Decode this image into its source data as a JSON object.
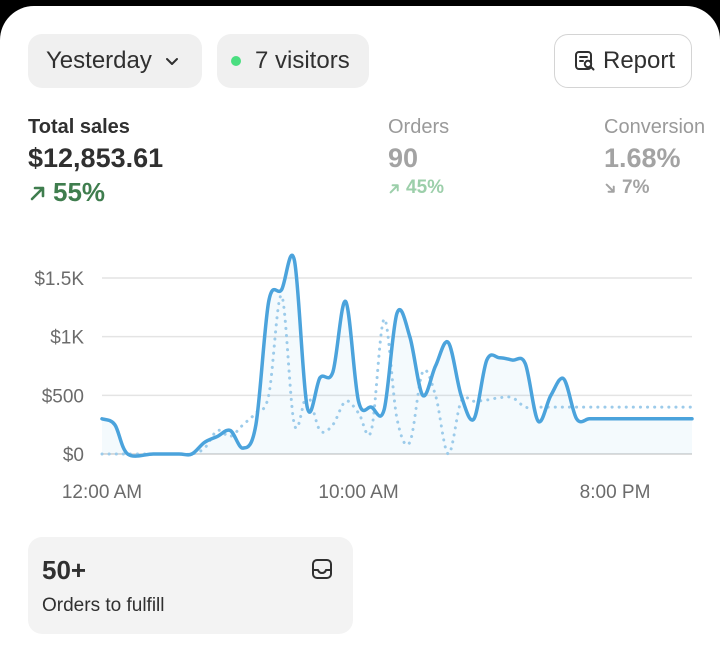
{
  "filters": {
    "date_range": "Yesterday",
    "visitors": "7 visitors"
  },
  "actions": {
    "report_label": "Report"
  },
  "metrics": {
    "total_sales": {
      "label": "Total sales",
      "value": "$12,853.61",
      "change": "55%",
      "direction": "up"
    },
    "orders": {
      "label": "Orders",
      "value": "90",
      "change": "45%",
      "direction": "up"
    },
    "conversion": {
      "label": "Conversion",
      "value": "1.68%",
      "change": "7%",
      "direction": "down"
    }
  },
  "colors": {
    "line_primary": "#4ba3dc",
    "line_comparison": "#9ccbea",
    "positive": "#3f7d4e",
    "live_dot": "#4ade80"
  },
  "chart_data": {
    "type": "line",
    "ylim": [
      0,
      1500
    ],
    "y_ticks": [
      {
        "value": 0,
        "label": "$0"
      },
      {
        "value": 500,
        "label": "$500"
      },
      {
        "value": 1000,
        "label": "$1K"
      },
      {
        "value": 1500,
        "label": "$1.5K"
      }
    ],
    "x_ticks": [
      {
        "hour": 0,
        "label": "12:00 AM"
      },
      {
        "hour": 10,
        "label": "10:00 AM"
      },
      {
        "hour": 20,
        "label": "8:00 PM"
      }
    ],
    "grid": true,
    "series": [
      {
        "style": "solid",
        "x": [
          0,
          0.5,
          1,
          2,
          3,
          3.5,
          4,
          4.5,
          5,
          5.5,
          6,
          6.5,
          7,
          7.5,
          8,
          8.5,
          9,
          9.5,
          10,
          10.5,
          11,
          11.5,
          12,
          12.5,
          13,
          13.5,
          14,
          14.5,
          15,
          15.5,
          16,
          16.5,
          17,
          17.5,
          18,
          18.5,
          19,
          19.5,
          20,
          20.5,
          21,
          21.5,
          22,
          22.5,
          23
        ],
        "y": [
          300,
          250,
          0,
          0,
          0,
          0,
          100,
          150,
          200,
          50,
          250,
          1300,
          1400,
          1650,
          400,
          650,
          700,
          1300,
          450,
          400,
          380,
          1200,
          1000,
          500,
          750,
          950,
          500,
          300,
          800,
          820,
          800,
          770,
          280,
          500,
          640,
          300,
          300,
          300,
          300,
          300,
          300,
          300,
          300,
          300,
          300
        ]
      },
      {
        "style": "dotted",
        "x": [
          0,
          0.5,
          1,
          2,
          3,
          3.5,
          4,
          4.5,
          5,
          5.5,
          6,
          6.5,
          7,
          7.5,
          8,
          8.5,
          9,
          9.5,
          10,
          10.5,
          11,
          11.5,
          12,
          12.5,
          13,
          13.5,
          14,
          14.5,
          15,
          15.5,
          16,
          16.5,
          17,
          17.5,
          18,
          18.5,
          19,
          19.5,
          20,
          20.5,
          21,
          21.5,
          22,
          22.5,
          23
        ],
        "y": [
          0,
          0,
          0,
          0,
          0,
          0,
          50,
          200,
          150,
          250,
          350,
          500,
          1350,
          250,
          500,
          200,
          250,
          450,
          350,
          200,
          1150,
          300,
          100,
          700,
          500,
          0,
          450,
          450,
          460,
          480,
          480,
          400,
          400,
          400,
          400,
          400,
          400,
          400,
          400,
          400,
          400,
          400,
          400,
          400,
          400
        ]
      }
    ]
  },
  "fulfill": {
    "count": "50+",
    "label": "Orders to fulfill"
  }
}
